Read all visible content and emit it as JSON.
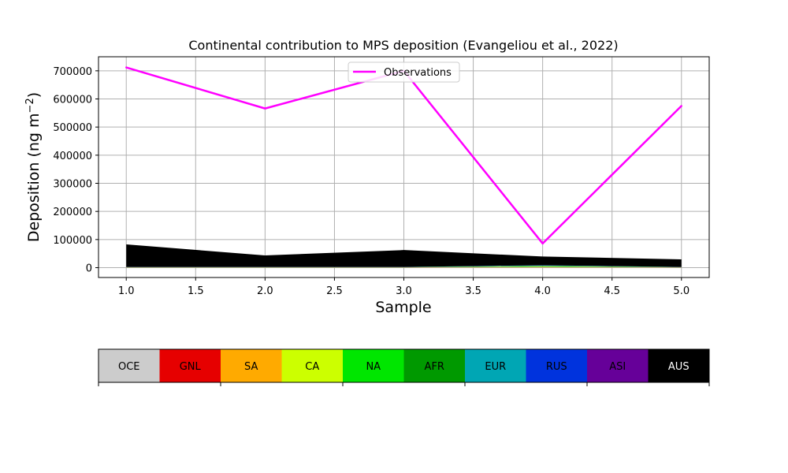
{
  "chart_data": {
    "type": "area",
    "title": "Continental contribution to MPS deposition (Evangeliou et al., 2022)",
    "xlabel": "Sample",
    "ylabel_main": "Deposition (ng m",
    "ylabel_sup": "−2",
    "ylabel_close": ")",
    "x": [
      1.0,
      2.0,
      3.0,
      4.0,
      5.0
    ],
    "xlim": [
      0.8,
      5.2
    ],
    "ylim": [
      -35000,
      750000
    ],
    "xticks": [
      1.0,
      1.5,
      2.0,
      2.5,
      3.0,
      3.5,
      4.0,
      4.5,
      5.0
    ],
    "xtick_labels": [
      "1.0",
      "1.5",
      "2.0",
      "2.5",
      "3.0",
      "3.5",
      "4.0",
      "4.5",
      "5.0"
    ],
    "yticks": [
      0,
      100000,
      200000,
      300000,
      400000,
      500000,
      600000,
      700000
    ],
    "ytick_labels": [
      "0",
      "100000",
      "200000",
      "300000",
      "400000",
      "500000",
      "600000",
      "700000"
    ],
    "grid": true,
    "stacked_series": [
      {
        "key": "OCE",
        "color": "#cccccc",
        "values": [
          500,
          500,
          500,
          800,
          500
        ]
      },
      {
        "key": "GNL",
        "color": "#e60000",
        "values": [
          200,
          200,
          200,
          300,
          200
        ]
      },
      {
        "key": "SA",
        "color": "#ffaa00",
        "values": [
          300,
          300,
          300,
          1500,
          300
        ]
      },
      {
        "key": "CA",
        "color": "#ccff00",
        "values": [
          200,
          200,
          200,
          800,
          200
        ]
      },
      {
        "key": "NA",
        "color": "#00e600",
        "values": [
          300,
          300,
          300,
          1500,
          300
        ]
      },
      {
        "key": "AFR",
        "color": "#009900",
        "values": [
          300,
          300,
          300,
          1500,
          300
        ]
      },
      {
        "key": "EUR",
        "color": "#00a6b4",
        "values": [
          300,
          300,
          300,
          1200,
          300
        ]
      },
      {
        "key": "RUS",
        "color": "#0033dd",
        "values": [
          200,
          200,
          200,
          500,
          200
        ]
      },
      {
        "key": "ASI",
        "color": "#660099",
        "values": [
          300,
          300,
          300,
          500,
          300
        ]
      },
      {
        "key": "AUS",
        "color": "#000000",
        "values": [
          80000,
          41000,
          60000,
          31000,
          27000
        ]
      }
    ],
    "series": [
      {
        "name": "Observations",
        "color": "#ff00ff",
        "values": [
          712000,
          566000,
          700000,
          86000,
          575000
        ]
      }
    ],
    "legend_placement": "upper-center",
    "colorbar": {
      "labels": [
        "OCE",
        "GNL",
        "SA",
        "CA",
        "NA",
        "AFR",
        "EUR",
        "RUS",
        "ASI",
        "AUS"
      ],
      "colors": [
        "#cccccc",
        "#e60000",
        "#ffaa00",
        "#ccff00",
        "#00e600",
        "#009900",
        "#00a6b4",
        "#0033dd",
        "#660099",
        "#000000"
      ],
      "text_colors": [
        "#000000",
        "#000000",
        "#000000",
        "#000000",
        "#000000",
        "#000000",
        "#000000",
        "#000000",
        "#000000",
        "#ffffff"
      ]
    }
  }
}
